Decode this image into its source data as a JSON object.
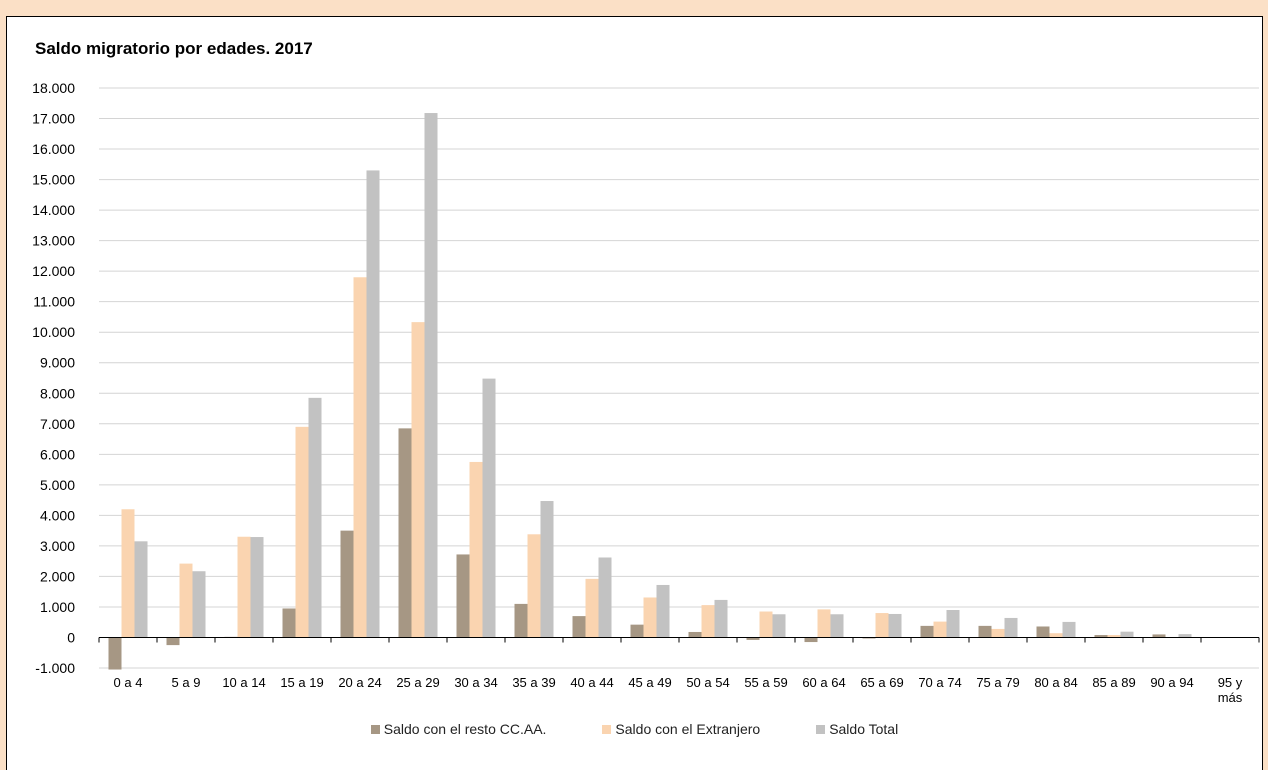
{
  "chart_data": {
    "type": "bar",
    "title": "Saldo migratorio por edades. 2017",
    "xlabel": "",
    "ylabel": "",
    "ylim": [
      -1000,
      18000
    ],
    "yticks": [
      -1000,
      0,
      1000,
      2000,
      3000,
      4000,
      5000,
      6000,
      7000,
      8000,
      9000,
      10000,
      11000,
      12000,
      13000,
      14000,
      15000,
      16000,
      17000,
      18000
    ],
    "ytick_labels": [
      "-1.000",
      "0",
      "1.000",
      "2.000",
      "3.000",
      "4.000",
      "5.000",
      "6.000",
      "7.000",
      "8.000",
      "9.000",
      "10.000",
      "11.000",
      "12.000",
      "13.000",
      "14.000",
      "15.000",
      "16.000",
      "17.000",
      "18.000"
    ],
    "grid": true,
    "legend_position": "bottom",
    "categories": [
      "0 a 4",
      "5 a 9",
      "10 a 14",
      "15 a 19",
      "20 a 24",
      "25 a 29",
      "30 a 34",
      "35 a 39",
      "40 a 44",
      "45 a 49",
      "50 a 54",
      "55 a 59",
      "60 a 64",
      "65 a 69",
      "70 a 74",
      "75 a 79",
      "80 a 84",
      "85 a 89",
      "90 a 94",
      "95 y más"
    ],
    "series": [
      {
        "name": "Saldo con el resto CC.AA.",
        "color": "#a69784",
        "values": [
          -1050,
          -250,
          20,
          950,
          3500,
          6850,
          2720,
          1100,
          700,
          420,
          180,
          -80,
          -150,
          -30,
          380,
          380,
          360,
          80,
          100,
          0
        ]
      },
      {
        "name": "Saldo con el Extranjero",
        "color": "#fad4b0",
        "values": [
          4200,
          2420,
          3300,
          6900,
          11800,
          10330,
          5750,
          3380,
          1920,
          1310,
          1060,
          850,
          920,
          800,
          520,
          280,
          140,
          80,
          0,
          0
        ]
      },
      {
        "name": "Saldo Total",
        "color": "#c2c2c2",
        "values": [
          3150,
          2170,
          3290,
          7850,
          15300,
          17180,
          8480,
          4470,
          2620,
          1720,
          1230,
          760,
          760,
          770,
          900,
          640,
          510,
          190,
          110,
          0
        ]
      }
    ]
  }
}
